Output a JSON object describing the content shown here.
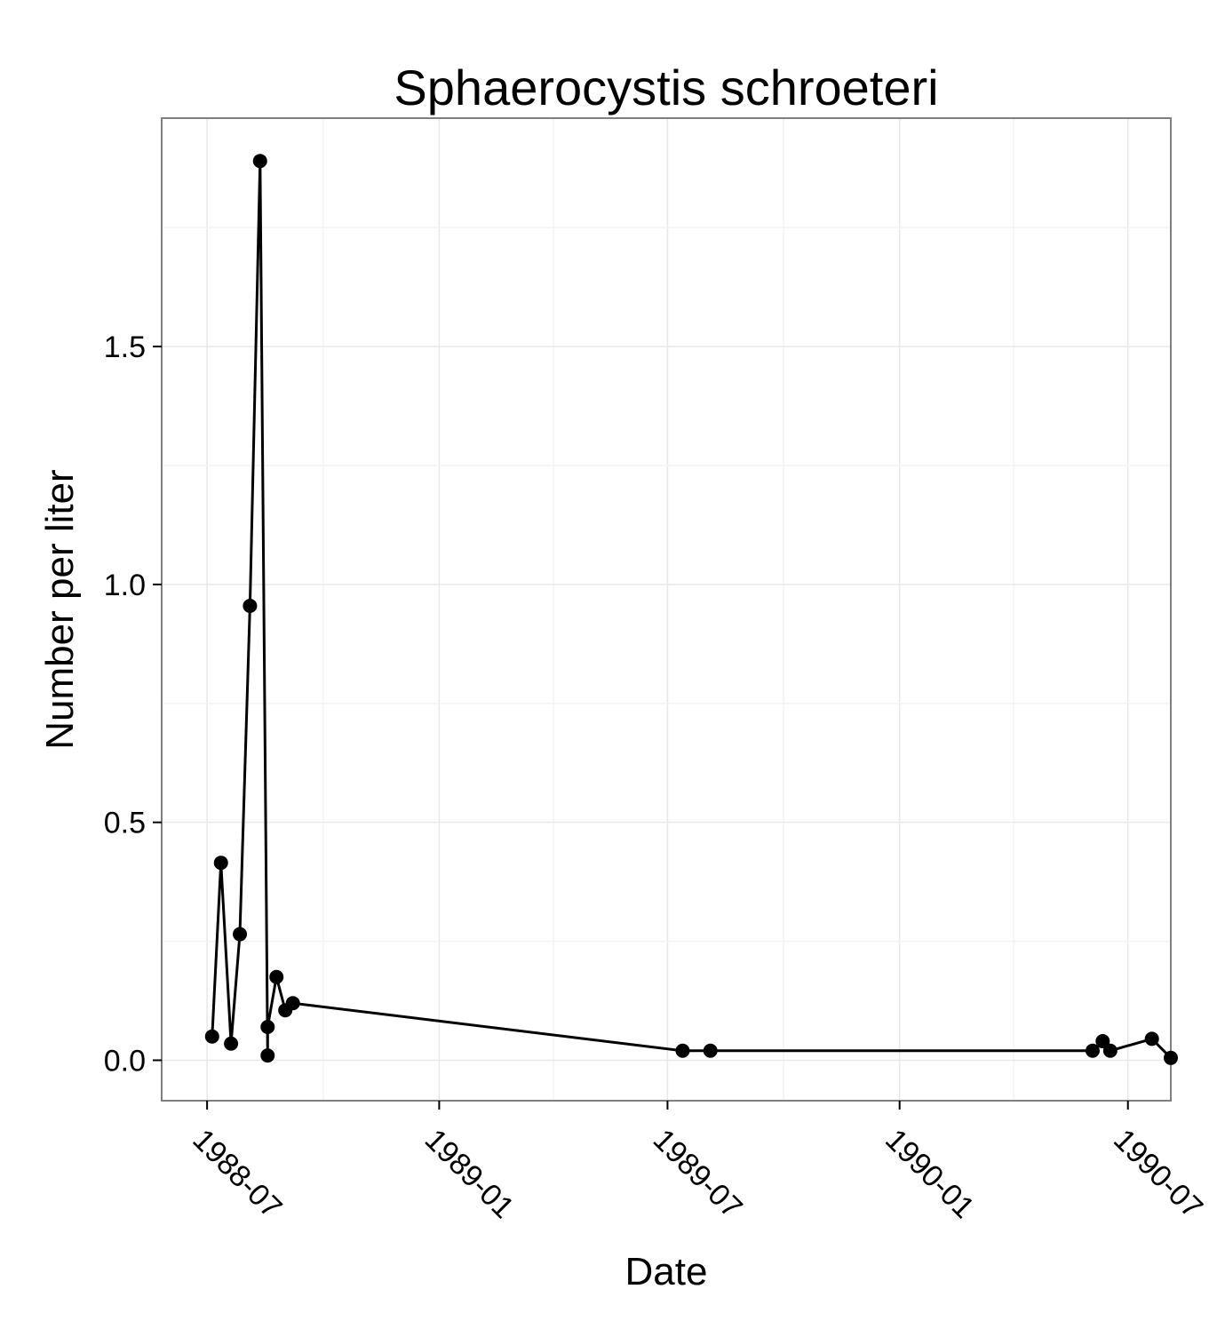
{
  "chart_data": {
    "type": "line",
    "title": "Sphaerocystis schroeteri",
    "xlabel": "Date",
    "ylabel": "Number per liter",
    "x_tick_labels": [
      "1988-07",
      "1989-01",
      "1989-07",
      "1990-01",
      "1990-07"
    ],
    "x_ticks": [
      "1988-07-01",
      "1989-01-01",
      "1989-07-01",
      "1990-01-01",
      "1990-07-01"
    ],
    "y_tick_labels": [
      "0.0",
      "0.5",
      "1.0",
      "1.5"
    ],
    "y_ticks": [
      0.0,
      0.5,
      1.0,
      1.5
    ],
    "xlim": [
      "1988-05-26",
      "1990-08-04"
    ],
    "ylim": [
      -0.085,
      1.98
    ],
    "grid": true,
    "series": [
      {
        "color": "#000000",
        "marker": "circle",
        "points": [
          {
            "x": "1988-07-05",
            "y": 0.05
          },
          {
            "x": "1988-07-12",
            "y": 0.415
          },
          {
            "x": "1988-07-20",
            "y": 0.035
          },
          {
            "x": "1988-07-27",
            "y": 0.265
          },
          {
            "x": "1988-08-04",
            "y": 0.955
          },
          {
            "x": "1988-08-12",
            "y": 1.89
          },
          {
            "x": "1988-08-18",
            "y": 0.01
          },
          {
            "x": "1988-08-18",
            "y": 0.07
          },
          {
            "x": "1988-08-25",
            "y": 0.175
          },
          {
            "x": "1988-09-01",
            "y": 0.105
          },
          {
            "x": "1988-09-07",
            "y": 0.12
          },
          {
            "x": "1989-07-13",
            "y": 0.02
          },
          {
            "x": "1989-08-04",
            "y": 0.02
          },
          {
            "x": "1990-06-03",
            "y": 0.02
          },
          {
            "x": "1990-06-11",
            "y": 0.04
          },
          {
            "x": "1990-06-17",
            "y": 0.02
          },
          {
            "x": "1990-07-20",
            "y": 0.045
          },
          {
            "x": "1990-08-04",
            "y": 0.005
          }
        ]
      }
    ]
  }
}
